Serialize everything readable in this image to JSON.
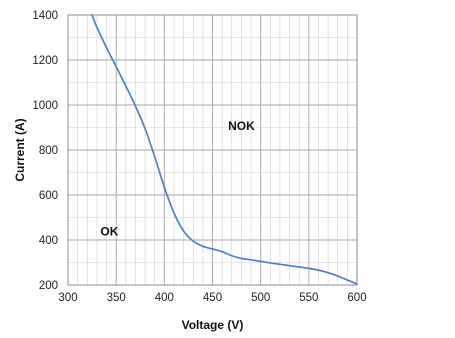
{
  "chart_data": {
    "type": "line",
    "title": "",
    "xlabel": "Voltage (V)",
    "ylabel": "Current (A)",
    "xlim": [
      300,
      600
    ],
    "ylim": [
      200,
      1400
    ],
    "x_ticks": [
      300,
      350,
      400,
      450,
      500,
      550,
      600
    ],
    "y_ticks": [
      200,
      400,
      600,
      800,
      1000,
      1200,
      1400
    ],
    "x_tick_labels": [
      "300",
      "350",
      "400",
      "450",
      "500",
      "550",
      "600"
    ],
    "y_tick_labels": [
      "200",
      "400",
      "600",
      "800",
      "1000",
      "1200",
      "1400"
    ],
    "grid": true,
    "minor_grid_x_step": 10,
    "minor_grid_y_step": 100,
    "series": [
      {
        "color": "#4f81bd",
        "x": [
          325,
          330,
          340,
          350,
          360,
          370,
          380,
          390,
          400,
          410,
          420,
          430,
          440,
          450,
          460,
          470,
          480,
          490,
          500,
          510,
          520,
          530,
          540,
          550,
          560,
          570,
          580,
          590,
          600
        ],
        "y": [
          1400,
          1345,
          1255,
          1170,
          1085,
          995,
          895,
          770,
          635,
          520,
          440,
          395,
          372,
          360,
          348,
          330,
          318,
          312,
          305,
          298,
          292,
          286,
          280,
          274,
          266,
          255,
          240,
          222,
          205
        ]
      }
    ],
    "annotations": [
      {
        "text": "NOK",
        "x": 480,
        "y": 890
      },
      {
        "text": "OK",
        "x": 343,
        "y": 420
      }
    ]
  }
}
